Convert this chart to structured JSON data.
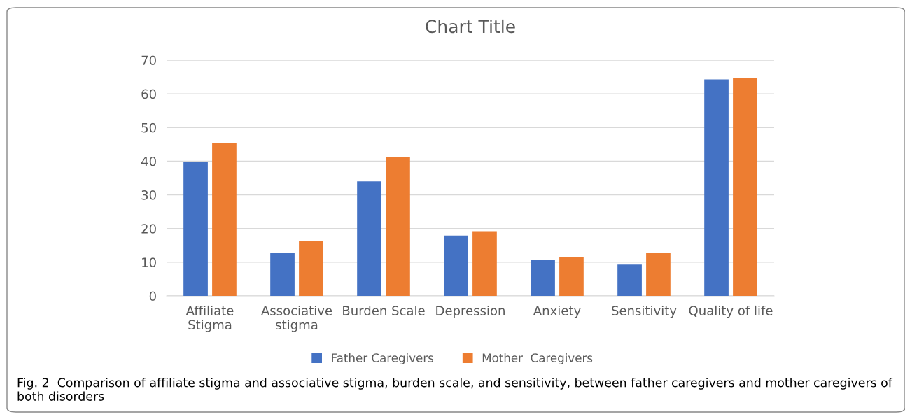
{
  "chart_data": {
    "type": "bar",
    "title": "Chart Title",
    "categories": [
      "Affiliate\nStigma",
      "Associative\nstigma",
      "Burden Scale",
      "Depression",
      "Anxiety",
      "Sensitivity",
      "Quality of life"
    ],
    "series": [
      {
        "name": "Father Caregivers",
        "color": "#4472c4",
        "values": [
          39.9,
          12.8,
          34.0,
          17.9,
          10.6,
          9.3,
          64.3
        ]
      },
      {
        "name": "Mother  Caregivers",
        "color": "#ed7d31",
        "values": [
          45.5,
          16.4,
          41.3,
          19.2,
          11.4,
          12.8,
          64.7
        ]
      }
    ],
    "ylim": [
      0,
      70
    ],
    "yticks": [
      0,
      10,
      20,
      30,
      40,
      50,
      60,
      70
    ],
    "grid": "y",
    "legend": "bottom",
    "annotations": [
      "Fig. 2  Comparison of affiliate stigma and associative stigma, burden scale, and sensitivity, between father caregivers and mother caregivers of both disorders"
    ]
  }
}
